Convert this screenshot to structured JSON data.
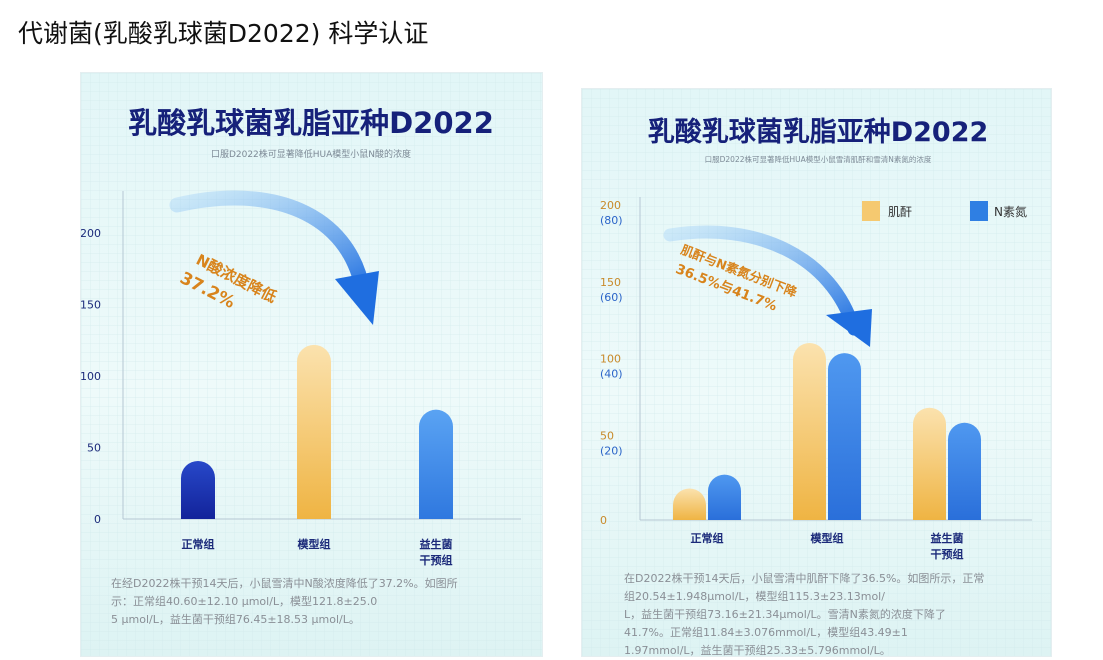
{
  "page": {
    "title": "代谢菌(乳酸乳球菌D2022) 科学认证"
  },
  "colors": {
    "navy": "#16217a",
    "bar_dark": "#1b38b8",
    "bar_blue": "#2f7fe3",
    "bar_gold": "#f1b844",
    "callout_orange": "#d8841c",
    "panel_bg": "#e9f8f8"
  },
  "chart_data": [
    {
      "type": "bar",
      "title": "乳酸乳球菌乳脂亚种D2022",
      "subtitle": "口服D2022株可显著降低HUA模型小鼠N酸的浓度",
      "categories": [
        "正常组",
        "模型组",
        "益生菌干预组"
      ],
      "values": [
        40.6,
        121.8,
        76.45
      ],
      "y_ticks": [
        "0",
        "50",
        "100",
        "150",
        "200"
      ],
      "ylim": [
        0,
        200
      ],
      "grid": true,
      "callout": {
        "line1": "N酸浓度降低",
        "line2": "37.2%"
      },
      "note": "在经D2022株干预14天后，小鼠雪清中N酸浓度降低了37.2%。如图所示：正常组40.60±12.10 μmol/L，模型121.8±25.05 μmol/L，益生菌干预组76.45±18.53 μmol/L。"
    },
    {
      "type": "bar",
      "title": "乳酸乳球菌乳脂亚种D2022",
      "subtitle": "口服D2022株可显著降低HUA模型小鼠雪清肌酐和雪清N素氮的浓度",
      "categories": [
        "正常组",
        "模型组",
        "益生菌干预组"
      ],
      "series": [
        {
          "name": "肌酐",
          "values": [
            20.54,
            115.3,
            73.16
          ]
        },
        {
          "name": "N素氮",
          "values": [
            11.84,
            43.49,
            25.33
          ]
        }
      ],
      "y_ticks": [
        "0",
        "50",
        "100",
        "150",
        "200"
      ],
      "y2_ticks": [
        "(20)",
        "(40)",
        "(60)",
        "(80)"
      ],
      "ylim": [
        0,
        200
      ],
      "y2lim": [
        0,
        80
      ],
      "grid": true,
      "legend": "top-right",
      "callout": {
        "line1": "肌酐与N素氮分别下降",
        "line2": "36.5%与41.7%"
      },
      "note": "在D2022株干预14天后，小鼠雪清中肌酐下降了36.5%。如图所示，正常组20.54±1.948μmol/L，模型组115.3±23.13mol/L，益生菌干预组73.16±21.34μmol/L。雪清N素氮的浓度下降了41.7%。正常组11.84±3.076mmol/L，模型组43.49±11.97mmol/L，益生菌干预组25.33±5.796mmol/L。"
    }
  ]
}
